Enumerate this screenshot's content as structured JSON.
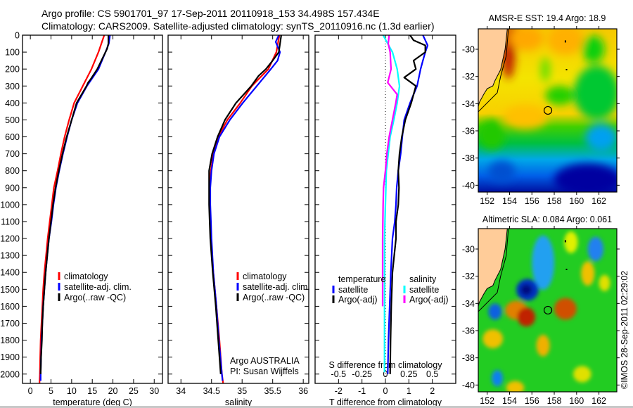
{
  "header": {
    "line1": "Argo profile: CS 5901701_97 17-Sep-2011 20110918_153 34.498S 157.434E",
    "line2": "Climatology: CARS2009. Satellite-adjusted climatology: synTS_20110916.nc (1.3d earlier)"
  },
  "credits": {
    "program": "Argo AUSTRALIA",
    "pi": "PI: Susan Wijffels",
    "stamp": "©IMOS 28-Sep-2011 02:29:02"
  },
  "colors": {
    "climatology": "#ff0000",
    "satellite": "#0000ff",
    "argo": "#000000",
    "sal_satellite": "#00ffff",
    "sal_argo": "#ff00ff"
  },
  "chart_data": [
    {
      "id": "temperature",
      "type": "line",
      "xlabel": "temperature (deg C)",
      "ylabel": "",
      "xlim": [
        -1.9,
        32
      ],
      "ylim": [
        2055,
        0
      ],
      "xticks": [
        0,
        5,
        10,
        15,
        20,
        25,
        30
      ],
      "yticks": [
        0,
        100,
        200,
        300,
        400,
        500,
        600,
        700,
        800,
        900,
        1000,
        1100,
        1200,
        1300,
        1400,
        1500,
        1600,
        1700,
        1800,
        1900,
        2000
      ],
      "legend": [
        "climatology",
        "satellite-adj. clim.",
        "Argo(..raw -QC)"
      ],
      "series": [
        {
          "name": "climatology",
          "color": "#ff0000",
          "depth": [
            0,
            100,
            200,
            300,
            400,
            500,
            600,
            700,
            800,
            900,
            1000,
            1100,
            1200,
            1300,
            1400,
            1500,
            1600,
            1700,
            1800,
            1900,
            2000,
            2055
          ],
          "values": [
            17.9,
            16.5,
            14.8,
            12.7,
            10.6,
            9.4,
            8.3,
            7.4,
            6.6,
            5.7,
            5.2,
            4.7,
            4.2,
            3.8,
            3.4,
            3.1,
            2.9,
            2.7,
            2.5,
            2.4,
            2.3,
            2.2
          ]
        },
        {
          "name": "satellite-adj. clim.",
          "color": "#0000ff",
          "depth": [
            0,
            50,
            100,
            200,
            300,
            400,
            500,
            600,
            700,
            800,
            900,
            1000,
            1100,
            1200,
            1300,
            1400,
            1500,
            1600,
            1700,
            1800,
            1900,
            2000,
            2040
          ],
          "values": [
            19.3,
            19.0,
            18.2,
            16.5,
            13.7,
            11.4,
            10.0,
            8.9,
            7.9,
            7.0,
            6.2,
            5.6,
            5.1,
            4.5,
            4.1,
            3.7,
            3.4,
            3.1,
            2.9,
            2.7,
            2.6,
            2.5,
            2.5
          ]
        },
        {
          "name": "Argo(..raw -QC)",
          "color": "#000000",
          "depth": [
            0,
            50,
            80,
            100,
            200,
            260,
            280,
            300,
            400,
            500,
            600,
            700,
            800,
            900,
            1000,
            1100,
            1200,
            1300,
            1400,
            1500,
            1600,
            1700,
            1800,
            1900,
            2000
          ],
          "values": [
            18.9,
            18.9,
            18.6,
            18.2,
            16.2,
            14.6,
            14.0,
            13.6,
            11.2,
            10.0,
            8.8,
            7.8,
            6.9,
            6.1,
            5.5,
            5.0,
            4.5,
            4.1,
            3.7,
            3.4,
            3.1,
            2.9,
            2.8,
            2.6,
            2.5
          ]
        }
      ]
    },
    {
      "id": "salinity",
      "type": "line",
      "xlabel": "salinity",
      "xlim": [
        33.79,
        36.09
      ],
      "ylim": [
        2055,
        0
      ],
      "xticks": [
        34,
        34.5,
        35,
        35.5,
        36
      ],
      "yticks": [
        0,
        100,
        200,
        300,
        400,
        500,
        600,
        700,
        800,
        900,
        1000,
        1100,
        1200,
        1300,
        1400,
        1500,
        1600,
        1700,
        1800,
        1900,
        2000
      ],
      "legend": [
        "climatology",
        "satellite-adj. clim.",
        "Argo(..raw -QC)"
      ],
      "series": [
        {
          "name": "climatology",
          "color": "#ff0000",
          "depth": [
            0,
            100,
            200,
            300,
            400,
            500,
            600,
            700,
            800,
            900,
            1000,
            1100,
            1200,
            1400,
            1600,
            1800,
            2000,
            2055
          ],
          "values": [
            35.61,
            35.56,
            35.43,
            35.16,
            34.97,
            34.76,
            34.61,
            34.53,
            34.49,
            34.47,
            34.47,
            34.48,
            34.49,
            34.53,
            34.58,
            34.63,
            34.67,
            34.69
          ]
        },
        {
          "name": "satellite-adj. clim.",
          "color": "#0000ff",
          "depth": [
            0,
            40,
            100,
            150,
            200,
            300,
            400,
            500,
            600,
            700,
            800,
            900,
            1000,
            1100,
            1200,
            1400,
            1600,
            1800,
            2000,
            2040
          ],
          "values": [
            35.6,
            35.55,
            35.62,
            35.58,
            35.47,
            35.24,
            35.01,
            34.8,
            34.63,
            34.54,
            34.5,
            34.48,
            34.48,
            34.49,
            34.5,
            34.53,
            34.58,
            34.62,
            34.67,
            34.68
          ]
        },
        {
          "name": "Argo(..raw -QC)",
          "color": "#000000",
          "depth": [
            0,
            100,
            150,
            200,
            240,
            300,
            400,
            500,
            600,
            700,
            800,
            900,
            1000,
            1100,
            1200,
            1400,
            1600,
            1800,
            2000
          ],
          "values": [
            35.64,
            35.6,
            35.5,
            35.39,
            35.27,
            35.15,
            34.9,
            34.72,
            34.6,
            34.51,
            34.46,
            34.46,
            34.46,
            34.47,
            34.48,
            34.52,
            34.57,
            34.61,
            34.65
          ]
        }
      ]
    },
    {
      "id": "difference",
      "type": "line",
      "xlabel": "T difference from climatology",
      "xlabel2": "S difference from climatology",
      "xlim": [
        -3,
        3
      ],
      "xlim2": [
        -0.75,
        0.75
      ],
      "ylim": [
        2055,
        0
      ],
      "xticks": [
        -2,
        -1,
        0,
        1,
        2
      ],
      "xticks2": [
        -0.5,
        -0.25,
        0,
        0.25,
        0.5
      ],
      "xticklabels2": [
        "-0.5",
        "-0.25",
        "0",
        "0.25",
        "0.5"
      ],
      "yticks": [
        0,
        100,
        200,
        300,
        400,
        500,
        600,
        700,
        800,
        900,
        1000,
        1100,
        1200,
        1300,
        1400,
        1500,
        1600,
        1700,
        1800,
        1900,
        2000
      ],
      "legend_temperature": {
        "title": "temperature",
        "entries": [
          "satellite",
          "Argo(-adj)"
        ]
      },
      "legend_salinity": {
        "title": "salinity",
        "entries": [
          "satellite",
          "Argo(-adj)"
        ]
      },
      "series": [
        {
          "name": "T satellite",
          "axis": "T",
          "color": "#0000ff",
          "depth": [
            0,
            30,
            60,
            100,
            150,
            200,
            300,
            400,
            500,
            600,
            700,
            800,
            900,
            1000,
            1100,
            1200,
            1400,
            1600,
            1800,
            2000
          ],
          "values": [
            1.6,
            1.7,
            1.8,
            1.7,
            1.6,
            1.5,
            1.35,
            1.05,
            0.8,
            0.72,
            0.65,
            0.55,
            0.48,
            0.45,
            0.4,
            0.3,
            0.23,
            0.18,
            0.13,
            0.1
          ]
        },
        {
          "name": "T Argo(-adj)",
          "axis": "T",
          "color": "#000000",
          "depth": [
            0,
            30,
            60,
            100,
            150,
            200,
            250,
            300,
            350,
            400,
            500,
            600,
            700,
            800,
            900,
            1000,
            1100,
            1200,
            1400,
            1600,
            1800,
            2000
          ],
          "values": [
            1.05,
            1.2,
            1.7,
            1.7,
            1.2,
            1.3,
            0.8,
            1.3,
            1.2,
            1.1,
            0.85,
            0.7,
            0.6,
            0.55,
            0.58,
            0.55,
            0.45,
            0.45,
            0.3,
            0.25,
            0.22,
            0.2
          ]
        },
        {
          "name": "S satellite",
          "axis": "S",
          "color": "#00ffff",
          "depth": [
            0,
            50,
            100,
            200,
            300,
            400,
            500,
            600,
            700,
            800,
            900,
            1000,
            1200,
            1400,
            1600,
            1800,
            1990
          ],
          "values": [
            -0.025,
            0.025,
            0.075,
            0.125,
            0.15,
            0.125,
            0.09,
            0.05,
            0.03,
            0.01,
            0.005,
            0,
            -0.01,
            -0.01,
            -0.01,
            -0.01,
            -0.01
          ]
        },
        {
          "name": "S Argo(-adj)",
          "axis": "S",
          "color": "#ff00ff",
          "depth": [
            0,
            50,
            100,
            200,
            280,
            350,
            400,
            500,
            600,
            700,
            800,
            900,
            1000,
            1200,
            1400,
            1600
          ],
          "values": [
            0.04,
            0.03,
            0.05,
            0.06,
            0.025,
            0.125,
            0.11,
            0.075,
            0.04,
            0.015,
            0,
            -0.02,
            -0.025,
            -0.03,
            -0.03,
            -0.03
          ]
        }
      ]
    },
    {
      "id": "sst_map",
      "type": "heatmap",
      "title": "AMSR-E SST: 19.4  Argo: 18.9",
      "xlim": [
        151.2,
        163.6
      ],
      "ylim": [
        -40.5,
        -28.5
      ],
      "xticks": [
        152,
        154,
        156,
        158,
        160,
        162
      ],
      "yticks": [
        -30,
        -32,
        -34,
        -36,
        -38,
        -40
      ],
      "argo_position": {
        "lon": 157.434,
        "lat": -34.498
      }
    },
    {
      "id": "sla_map",
      "type": "heatmap",
      "title": "Altimetric SLA: 0.084  Argo: 0.061",
      "xlim": [
        151.2,
        163.6
      ],
      "ylim": [
        -40.5,
        -28.5
      ],
      "xticks": [
        152,
        154,
        156,
        158,
        160,
        162
      ],
      "yticks": [
        -30,
        -32,
        -34,
        -36,
        -38,
        -40
      ],
      "argo_position": {
        "lon": 157.434,
        "lat": -34.498
      }
    }
  ]
}
